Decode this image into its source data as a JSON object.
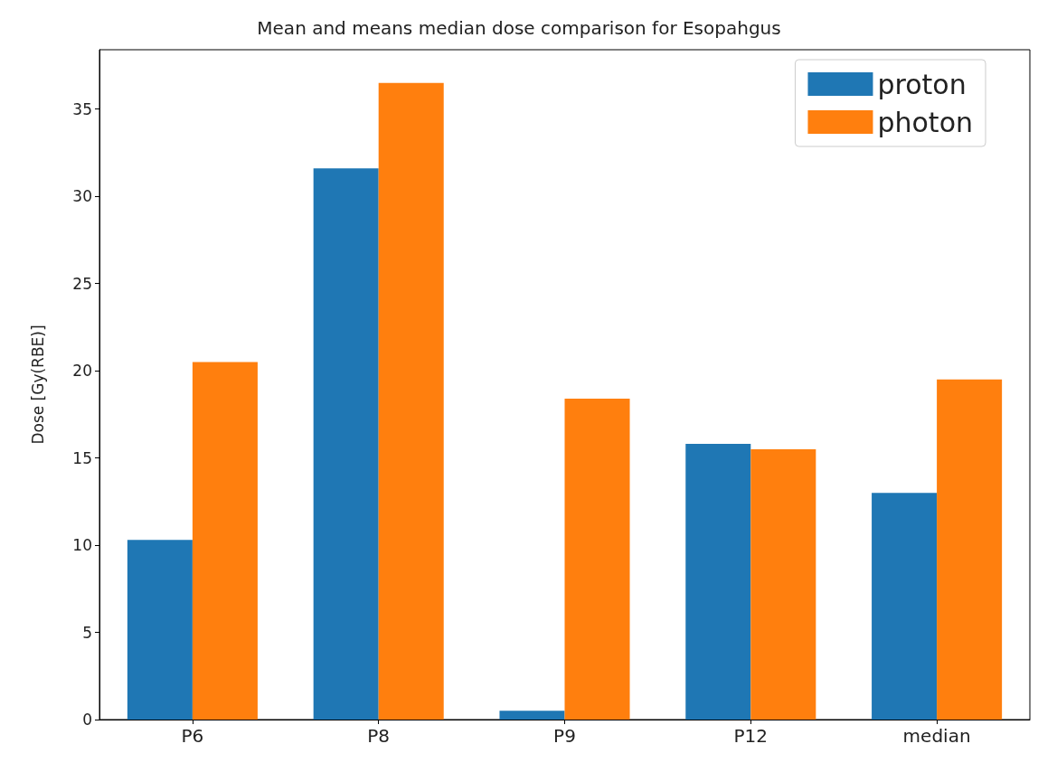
{
  "chart_data": {
    "type": "bar",
    "title": "Mean and means median dose comparison for Esopahgus",
    "ylabel": "Dose [Gy(RBE)]",
    "categories": [
      "P6",
      "P8",
      "P9",
      "P12",
      "median"
    ],
    "series": [
      {
        "name": "proton",
        "color": "#1f77b4",
        "values": [
          10.3,
          31.6,
          0.5,
          15.8,
          13.0
        ]
      },
      {
        "name": "photon",
        "color": "#ff7f0e",
        "values": [
          20.5,
          36.5,
          18.4,
          15.5,
          19.5
        ]
      }
    ],
    "ylim": [
      0,
      38.4
    ],
    "yticks": [
      0,
      5,
      10,
      15,
      20,
      25,
      30,
      35
    ],
    "grid": false,
    "legend": "top right"
  }
}
